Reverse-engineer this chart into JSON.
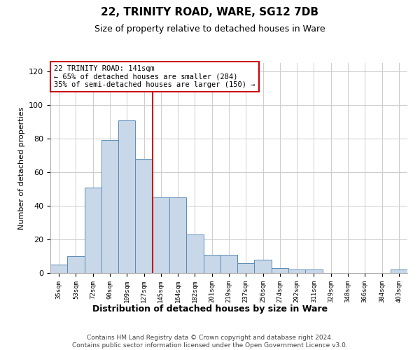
{
  "title1": "22, TRINITY ROAD, WARE, SG12 7DB",
  "title2": "Size of property relative to detached houses in Ware",
  "xlabel": "Distribution of detached houses by size in Ware",
  "ylabel": "Number of detached properties",
  "categories": [
    "35sqm",
    "53sqm",
    "72sqm",
    "90sqm",
    "109sqm",
    "127sqm",
    "145sqm",
    "164sqm",
    "182sqm",
    "201sqm",
    "219sqm",
    "237sqm",
    "256sqm",
    "274sqm",
    "292sqm",
    "311sqm",
    "329sqm",
    "348sqm",
    "366sqm",
    "384sqm",
    "403sqm"
  ],
  "values": [
    5,
    10,
    51,
    79,
    91,
    68,
    45,
    45,
    23,
    11,
    11,
    6,
    8,
    3,
    2,
    2,
    0,
    0,
    0,
    0,
    2
  ],
  "bar_color": "#c8d8e8",
  "bar_edge_color": "#5a8ab5",
  "grid_color": "#cccccc",
  "background_color": "#ffffff",
  "vline_x": 5.5,
  "vline_color": "#cc0000",
  "annotation_text": "22 TRINITY ROAD: 141sqm\n← 65% of detached houses are smaller (284)\n35% of semi-detached houses are larger (150) →",
  "annotation_box_color": "#ffffff",
  "annotation_box_edge": "#cc0000",
  "ylim": [
    0,
    125
  ],
  "yticks": [
    0,
    20,
    40,
    60,
    80,
    100,
    120
  ],
  "footer1": "Contains HM Land Registry data © Crown copyright and database right 2024.",
  "footer2": "Contains public sector information licensed under the Open Government Licence v3.0."
}
